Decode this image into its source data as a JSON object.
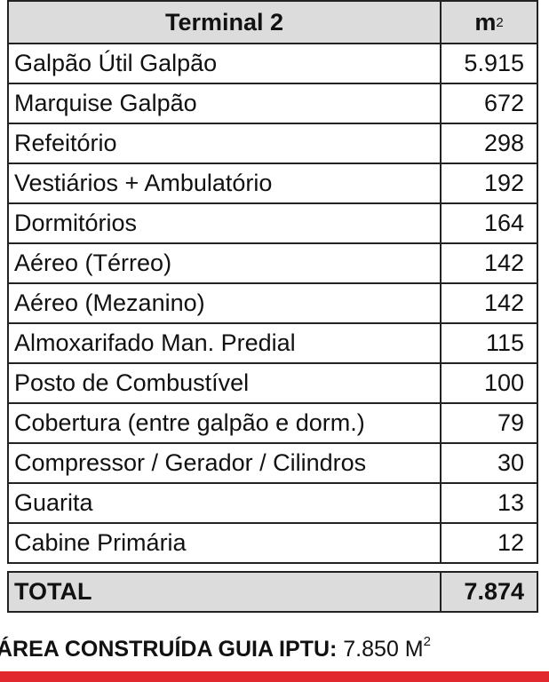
{
  "table": {
    "header": {
      "title": "Terminal 2",
      "unit": "m",
      "unit_sup": "2"
    },
    "rows": [
      [
        "Galpão Útil Galpão",
        "5.915"
      ],
      [
        "Marquise Galpão",
        "672"
      ],
      [
        "Refeitório",
        "298"
      ],
      [
        "Vestiários + Ambulatório",
        "192"
      ],
      [
        "Dormitórios",
        "164"
      ],
      [
        "Aéreo (Térreo)",
        "142"
      ],
      [
        "Aéreo (Mezanino)",
        "142"
      ],
      [
        "Almoxarifado Man. Predial",
        "115"
      ],
      [
        "Posto de Combustível",
        "100"
      ],
      [
        "Cobertura (entre galpão e dorm.)",
        "79"
      ],
      [
        "Compressor / Gerador / Cilindros",
        "30"
      ],
      [
        "Guarita",
        "13"
      ],
      [
        "Cabine Primária",
        "12"
      ]
    ],
    "total": [
      "TOTAL",
      "7.874"
    ]
  },
  "footer": {
    "label": "ÁREA CONSTRUÍDA GUIA IPTU:",
    "value": "7.850 M",
    "value_sup": "2"
  }
}
